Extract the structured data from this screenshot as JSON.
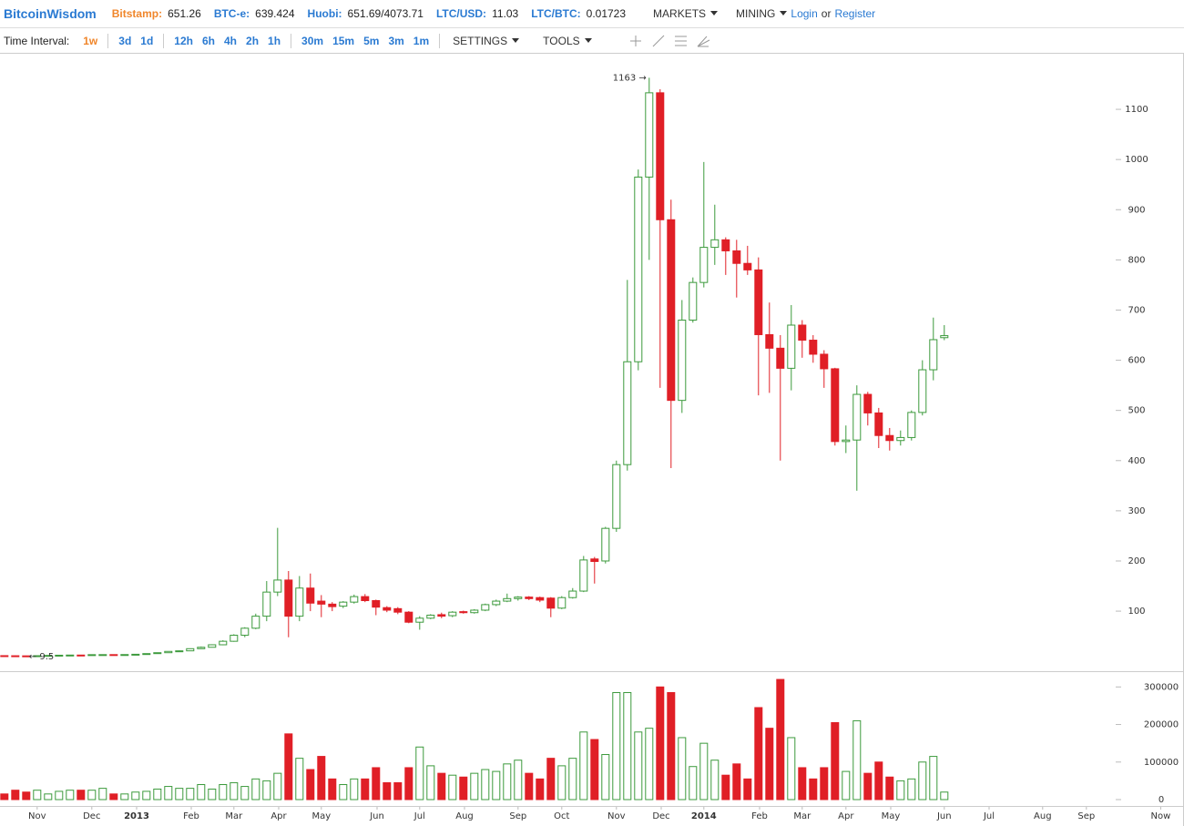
{
  "header": {
    "brand": "BitcoinWisdom",
    "tickers": [
      {
        "label": "Bitstamp:",
        "value": "651.26"
      },
      {
        "label": "BTC-e:",
        "value": "639.424"
      },
      {
        "label": "Huobi:",
        "value": "651.69/4073.71"
      },
      {
        "label": "LTC/USD:",
        "value": "11.03"
      },
      {
        "label": "LTC/BTC:",
        "value": "0.01723"
      }
    ],
    "menus": [
      "MARKETS",
      "MINING"
    ],
    "login": "Login",
    "or": "or",
    "register": "Register"
  },
  "toolbar": {
    "label": "Time Interval:",
    "interval_groups": [
      [
        {
          "label": "1w",
          "active": true
        }
      ],
      [
        {
          "label": "3d"
        },
        {
          "label": "1d"
        }
      ],
      [
        {
          "label": "12h"
        },
        {
          "label": "6h"
        },
        {
          "label": "4h"
        },
        {
          "label": "2h"
        },
        {
          "label": "1h"
        }
      ],
      [
        {
          "label": "30m"
        },
        {
          "label": "15m"
        },
        {
          "label": "5m"
        },
        {
          "label": "3m"
        },
        {
          "label": "1m"
        }
      ]
    ],
    "menus": [
      "SETTINGS",
      "TOOLS"
    ]
  },
  "chart_data": {
    "type": "candlestick",
    "up_color": "#3c9a3c",
    "down_color": "#e01f26",
    "categories": [
      null,
      null,
      null,
      null,
      null,
      null,
      null,
      null,
      null,
      null,
      null,
      null,
      null,
      null,
      null,
      null,
      null,
      null,
      null,
      null,
      null,
      null,
      null,
      null,
      null,
      null,
      null,
      null,
      null,
      null,
      null,
      null,
      null,
      null,
      null,
      null,
      null,
      null,
      null,
      null,
      null,
      null,
      null,
      null,
      null,
      null,
      null,
      null,
      null,
      null,
      null,
      null,
      null,
      null,
      null,
      null,
      null,
      null,
      null,
      null,
      null,
      null,
      null,
      null,
      null,
      null,
      null,
      null,
      null,
      null,
      null,
      null,
      null,
      null,
      null,
      null,
      null,
      null,
      null,
      null,
      null,
      null,
      null,
      null,
      null,
      null,
      null
    ],
    "open": [
      11.3,
      11.1,
      10.9,
      10.8,
      11.2,
      11.8,
      12.2,
      12.5,
      12.4,
      13.3,
      13.4,
      13.3,
      13.5,
      14.1,
      15.4,
      17.2,
      19.8,
      20.9,
      25.2,
      28.0,
      33,
      40,
      52,
      66,
      90,
      138,
      162,
      90,
      146,
      120,
      114,
      110,
      118,
      129,
      121,
      107,
      105,
      98,
      78,
      86,
      93,
      91,
      99,
      97,
      102,
      113,
      120,
      125,
      128,
      127,
      126,
      106,
      127,
      140,
      204,
      200,
      265,
      392,
      597,
      965,
      1133,
      880,
      520,
      680,
      755,
      825,
      840,
      818,
      793,
      780,
      651,
      624,
      584,
      670,
      640,
      612,
      583,
      438,
      441,
      532,
      495,
      450,
      440,
      446,
      496,
      581,
      645
    ],
    "high": [
      11.9,
      11.6,
      11.4,
      11.5,
      12.0,
      12.4,
      12.8,
      13.0,
      13.5,
      13.8,
      13.9,
      13.7,
      14.3,
      15.5,
      17.5,
      20.0,
      21.6,
      25.8,
      29.5,
      34,
      42,
      54,
      68,
      95,
      160,
      266,
      180,
      170,
      175,
      132,
      118,
      120,
      133,
      134,
      123,
      110,
      108,
      100,
      90,
      94,
      97,
      100,
      101,
      104,
      115,
      123,
      135,
      130,
      130,
      129,
      128,
      130,
      146,
      210,
      208,
      268,
      400,
      760,
      980,
      1163,
      1140,
      920,
      720,
      765,
      995,
      910,
      845,
      840,
      828,
      805,
      715,
      650,
      710,
      680,
      650,
      620,
      585,
      470,
      550,
      537,
      505,
      465,
      460,
      500,
      600,
      685,
      670
    ],
    "low": [
      10.8,
      10.6,
      9.5,
      10.5,
      11.0,
      11.4,
      11.9,
      12.2,
      12.0,
      12.9,
      13.0,
      12.9,
      13.2,
      13.9,
      15.1,
      16.8,
      19.2,
      20.5,
      24.6,
      27.5,
      32,
      39,
      48,
      64,
      80,
      130,
      48,
      80,
      100,
      88,
      100,
      106,
      115,
      118,
      92,
      98,
      94,
      76,
      63,
      84,
      86,
      88,
      95,
      95,
      100,
      110,
      118,
      121,
      122,
      118,
      88,
      104,
      125,
      138,
      155,
      195,
      258,
      380,
      580,
      800,
      545,
      385,
      495,
      675,
      745,
      790,
      770,
      725,
      770,
      530,
      535,
      400,
      540,
      605,
      595,
      545,
      430,
      415,
      340,
      470,
      425,
      420,
      430,
      440,
      490,
      560,
      640
    ],
    "close": [
      11.1,
      10.9,
      10.8,
      11.2,
      11.8,
      12.2,
      12.5,
      12.4,
      13.3,
      13.4,
      13.3,
      13.5,
      14.1,
      15.4,
      17.2,
      19.8,
      20.9,
      25.2,
      28.0,
      33,
      40,
      52,
      66,
      90,
      138,
      162,
      90,
      146,
      116,
      114,
      109,
      118,
      129,
      121,
      108,
      102,
      98,
      78,
      86,
      92,
      90,
      98,
      97,
      102,
      113,
      120,
      125,
      128,
      125,
      122,
      106,
      127,
      140,
      202,
      199,
      265,
      392,
      597,
      965,
      1133,
      880,
      520,
      680,
      755,
      825,
      840,
      818,
      793,
      780,
      651,
      624,
      584,
      670,
      640,
      612,
      583,
      438,
      441,
      532,
      495,
      450,
      440,
      446,
      496,
      581,
      641,
      649
    ],
    "volume": [
      15000,
      25000,
      20000,
      25000,
      15000,
      22000,
      25000,
      25000,
      25000,
      30000,
      15000,
      15000,
      20000,
      22000,
      28000,
      35000,
      30000,
      30000,
      40000,
      28000,
      40000,
      45000,
      35000,
      55000,
      50000,
      70000,
      175000,
      110000,
      80000,
      115000,
      55000,
      40000,
      55000,
      55000,
      85000,
      45000,
      45000,
      85000,
      140000,
      90000,
      70000,
      65000,
      60000,
      70000,
      80000,
      75000,
      95000,
      105000,
      70000,
      55000,
      110000,
      90000,
      110000,
      180000,
      160000,
      120000,
      285000,
      285000,
      180000,
      190000,
      300000,
      285000,
      165000,
      88000,
      150000,
      105000,
      65000,
      95000,
      55000,
      245000,
      190000,
      320000,
      165000,
      85000,
      55000,
      85000,
      205000,
      75000,
      210000,
      70000,
      100000,
      60000,
      50000,
      55000,
      100000,
      115000,
      20000
    ],
    "ylim": [
      -16,
      1209
    ],
    "yticks": [
      100,
      200,
      300,
      400,
      500,
      600,
      700,
      800,
      900,
      1000,
      1100
    ],
    "volume_ylim": [
      0,
      325000
    ],
    "volume_yticks": [
      0,
      100000,
      200000,
      300000
    ],
    "xlim": [
      -0.4,
      107.1
    ],
    "xticks": [
      {
        "value": 3.0,
        "label": "Nov"
      },
      {
        "value": 8.0,
        "label": "Dec"
      },
      {
        "value": 12.1,
        "label": "2013"
      },
      {
        "value": 17.1,
        "label": "Feb"
      },
      {
        "value": 21.0,
        "label": "Mar"
      },
      {
        "value": 25.1,
        "label": "Apr"
      },
      {
        "value": 29.0,
        "label": "May"
      },
      {
        "value": 34.1,
        "label": "Jun"
      },
      {
        "value": 38.0,
        "label": "Jul"
      },
      {
        "value": 42.1,
        "label": "Aug"
      },
      {
        "value": 47.0,
        "label": "Sep"
      },
      {
        "value": 51.0,
        "label": "Oct"
      },
      {
        "value": 56.0,
        "label": "Nov"
      },
      {
        "value": 60.1,
        "label": "Dec"
      },
      {
        "value": 64.0,
        "label": "2014"
      },
      {
        "value": 69.1,
        "label": "Feb"
      },
      {
        "value": 73.0,
        "label": "Mar"
      },
      {
        "value": 77.0,
        "label": "Apr"
      },
      {
        "value": 81.1,
        "label": "May"
      },
      {
        "value": 86.0,
        "label": "Jun"
      },
      {
        "value": 90.1,
        "label": "Jul"
      },
      {
        "value": 95.0,
        "label": "Aug"
      },
      {
        "value": 99.0,
        "label": "Sep"
      },
      {
        "value": 105.8,
        "label": "Now"
      }
    ],
    "annotations": {
      "high": "1163 →",
      "low": "← 9.5"
    }
  }
}
